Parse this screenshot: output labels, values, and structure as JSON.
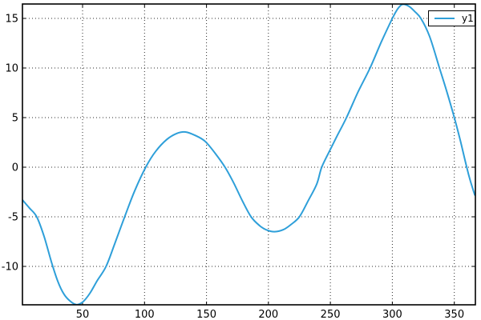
{
  "chart_data": {
    "type": "line",
    "title": "",
    "xlabel": "",
    "ylabel": "",
    "xlim": [
      1.5,
      367
    ],
    "ylim": [
      -13.87,
      16.45
    ],
    "x_ticks": [
      50,
      100,
      150,
      200,
      250,
      300,
      350
    ],
    "y_ticks": [
      -10,
      -5,
      0,
      5,
      10,
      15
    ],
    "grid": {
      "style": "dotted",
      "on": true,
      "color": "#2b2b2b"
    },
    "frame_color": "#000000",
    "background": "#ffffff",
    "legend": {
      "position": "top-right",
      "border_color": "#000000",
      "background": "#ffffff",
      "entries": [
        {
          "label": "y1",
          "color": "#2e9fd9"
        }
      ]
    },
    "series": [
      {
        "name": "y1",
        "color": "#2e9fd9",
        "width": 2,
        "points": [
          [
            1.5,
            -3.3
          ],
          [
            7,
            -4.1
          ],
          [
            13,
            -5.0
          ],
          [
            19,
            -7.0
          ],
          [
            25,
            -9.6
          ],
          [
            30,
            -11.5
          ],
          [
            35,
            -12.8
          ],
          [
            40,
            -13.5
          ],
          [
            45,
            -13.85
          ],
          [
            50,
            -13.6
          ],
          [
            56,
            -12.7
          ],
          [
            62,
            -11.4
          ],
          [
            69,
            -10.0
          ],
          [
            76,
            -7.7
          ],
          [
            84,
            -5.0
          ],
          [
            92,
            -2.4
          ],
          [
            101,
            0.0
          ],
          [
            109,
            1.6
          ],
          [
            118,
            2.8
          ],
          [
            126,
            3.4
          ],
          [
            133,
            3.55
          ],
          [
            141,
            3.2
          ],
          [
            149,
            2.6
          ],
          [
            157,
            1.4
          ],
          [
            165,
            0.0
          ],
          [
            172,
            -1.6
          ],
          [
            179,
            -3.4
          ],
          [
            186,
            -5.0
          ],
          [
            193,
            -5.9
          ],
          [
            199,
            -6.35
          ],
          [
            205,
            -6.5
          ],
          [
            212,
            -6.3
          ],
          [
            218,
            -5.8
          ],
          [
            225,
            -5.0
          ],
          [
            232,
            -3.4
          ],
          [
            239,
            -1.7
          ],
          [
            243,
            0.0
          ],
          [
            250,
            1.8
          ],
          [
            256,
            3.3
          ],
          [
            263,
            5.0
          ],
          [
            272,
            7.5
          ],
          [
            282,
            10.0
          ],
          [
            291,
            12.6
          ],
          [
            300,
            15.0
          ],
          [
            304,
            15.9
          ],
          [
            308,
            16.4
          ],
          [
            313,
            16.25
          ],
          [
            318,
            15.7
          ],
          [
            323,
            15.0
          ],
          [
            330,
            13.2
          ],
          [
            338,
            10.0
          ],
          [
            344,
            7.6
          ],
          [
            350,
            5.0
          ],
          [
            355,
            2.6
          ],
          [
            360,
            0.0
          ],
          [
            363,
            -1.4
          ],
          [
            366.5,
            -2.8
          ]
        ]
      }
    ]
  }
}
